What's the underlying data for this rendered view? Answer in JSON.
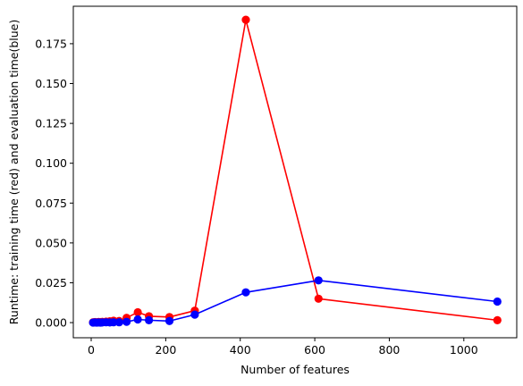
{
  "chart_data": {
    "type": "line",
    "title": "",
    "xlabel": "Number of features",
    "ylabel": "Runtime: training time (red) and evaluation time(blue)",
    "xlim": [
      -48,
      1142
    ],
    "ylim": [
      -0.0095,
      0.1985
    ],
    "xticks": [
      0,
      200,
      400,
      600,
      800,
      1000
    ],
    "xtick_labels": [
      "0",
      "200",
      "400",
      "600",
      "800",
      "1000"
    ],
    "yticks": [
      0.0,
      0.025,
      0.05,
      0.075,
      0.1,
      0.125,
      0.15,
      0.175
    ],
    "ytick_labels": [
      "0.000",
      "0.025",
      "0.050",
      "0.075",
      "0.100",
      "0.125",
      "0.150",
      "0.175"
    ],
    "grid": false,
    "legend": "none",
    "series": [
      {
        "color": "#ff0000",
        "marker": "circle",
        "x": [
          5,
          10,
          15,
          20,
          25,
          30,
          40,
          50,
          60,
          75,
          95,
          125,
          155,
          210,
          278,
          415,
          610,
          1090
        ],
        "y": [
          0.0002,
          0.0003,
          0.0002,
          0.0004,
          0.0003,
          0.0005,
          0.0006,
          0.0008,
          0.0012,
          0.001,
          0.003,
          0.0065,
          0.004,
          0.0035,
          0.0075,
          0.19,
          0.015,
          0.0015
        ]
      },
      {
        "color": "#0000ff",
        "marker": "circle",
        "x": [
          5,
          10,
          15,
          20,
          25,
          30,
          40,
          50,
          60,
          75,
          95,
          125,
          155,
          210,
          278,
          415,
          610,
          1090
        ],
        "y": [
          0.0,
          0.0001,
          0.0,
          0.0001,
          0.0,
          0.0001,
          0.0002,
          0.0001,
          0.0002,
          0.0002,
          0.0005,
          0.002,
          0.0015,
          0.001,
          0.005,
          0.019,
          0.0265,
          0.0132
        ]
      }
    ]
  }
}
